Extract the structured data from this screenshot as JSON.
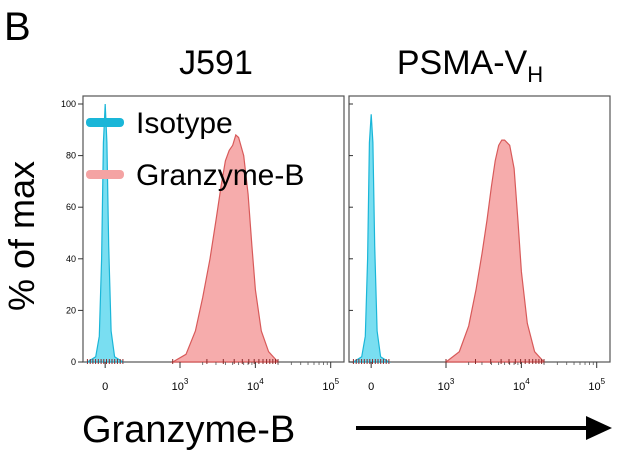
{
  "panel_label": "B",
  "chart_data": [
    {
      "type": "area",
      "title": "J591",
      "ylabel": "% of max",
      "xlabel": "Granzyme-B",
      "x_scale": "logicle",
      "ylim": [
        0,
        100
      ],
      "yticks": [
        "0",
        "20",
        "40",
        "60",
        "80",
        "100"
      ],
      "xticks": [
        {
          "base": "0",
          "exp": ""
        },
        {
          "base": "10",
          "exp": "3"
        },
        {
          "base": "10",
          "exp": "4"
        },
        {
          "base": "10",
          "exp": "5"
        }
      ],
      "legend": {
        "position": "top-left",
        "entries": [
          "Isotype",
          "Granzyme-B"
        ]
      },
      "colors": {
        "Isotype": "#61d8ee",
        "Granzyme-B": "#f59d9d",
        "Isotype_line": "#1ab6d8",
        "Granzyme-B_line": "#d85a5a"
      },
      "series": [
        {
          "name": "Isotype",
          "x": [
            -150,
            -80,
            -50,
            -30,
            -15,
            0,
            15,
            30,
            50,
            80,
            150
          ],
          "y": [
            0,
            2,
            10,
            40,
            85,
            100,
            85,
            45,
            12,
            2,
            0
          ]
        },
        {
          "name": "Granzyme-B",
          "x": [
            800,
            1200,
            1600,
            2000,
            2500,
            3000,
            3500,
            4000,
            4500,
            5000,
            5500,
            6000,
            7000,
            8000,
            9000,
            10000,
            12000,
            15000,
            20000
          ],
          "y": [
            0,
            3,
            12,
            25,
            40,
            55,
            68,
            78,
            82,
            84,
            88,
            87,
            80,
            65,
            45,
            28,
            12,
            4,
            0
          ]
        }
      ]
    },
    {
      "type": "area",
      "title": "PSMA-V",
      "title_sub": "H",
      "ylim": [
        0,
        100
      ],
      "x_scale": "logicle",
      "xticks": [
        {
          "base": "0",
          "exp": ""
        },
        {
          "base": "10",
          "exp": "3"
        },
        {
          "base": "10",
          "exp": "4"
        },
        {
          "base": "10",
          "exp": "5"
        }
      ],
      "colors": {
        "Isotype": "#61d8ee",
        "Granzyme-B": "#f59d9d",
        "Isotype_line": "#1ab6d8",
        "Granzyme-B_line": "#d85a5a"
      },
      "series": [
        {
          "name": "Isotype",
          "x": [
            -150,
            -80,
            -50,
            -30,
            -15,
            0,
            15,
            30,
            50,
            80,
            150
          ],
          "y": [
            0,
            2,
            10,
            40,
            85,
            96,
            85,
            45,
            12,
            2,
            0
          ]
        },
        {
          "name": "Granzyme-B",
          "x": [
            1000,
            1500,
            2000,
            2500,
            3000,
            3500,
            4000,
            4500,
            5000,
            5500,
            6000,
            7000,
            8000,
            9000,
            10000,
            12000,
            15000,
            20000
          ],
          "y": [
            0,
            4,
            14,
            28,
            42,
            55,
            68,
            78,
            84,
            86,
            86,
            84,
            75,
            55,
            35,
            15,
            4,
            0
          ]
        }
      ]
    }
  ]
}
